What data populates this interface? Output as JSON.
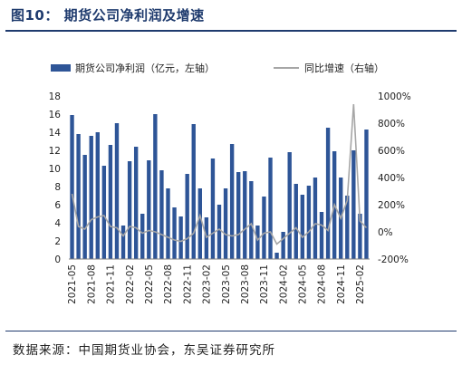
{
  "figure": {
    "title": "图10：  期货公司净利润及增速",
    "source": "数据来源：中国期货业协会，东吴证券研究所"
  },
  "colors": {
    "bar": "#2e5597",
    "line": "#a6a6a6",
    "title": "#1f3b6e"
  },
  "chart_data": {
    "type": "bar",
    "title": "",
    "xlabel": "",
    "ylabel": "",
    "ylim": [
      0,
      18
    ],
    "y2lim": [
      -200,
      1000
    ],
    "yticks": [
      "0",
      "2",
      "4",
      "6",
      "8",
      "10",
      "12",
      "14",
      "16",
      "18"
    ],
    "y2ticks": [
      "-200%",
      "0%",
      "200%",
      "400%",
      "600%",
      "800%",
      "1000%"
    ],
    "x_tick_labels": [
      "2021-05",
      "2021-08",
      "2021-11",
      "2022-02",
      "2022-05",
      "2022-08",
      "2022-11",
      "2023-02",
      "2023-05",
      "2023-08",
      "2023-11",
      "2024-02",
      "2024-05",
      "2024-08",
      "2024-11",
      "2025-02"
    ],
    "categories": [
      "2021-05",
      "2021-06",
      "2021-07",
      "2021-08",
      "2021-09",
      "2021-10",
      "2021-11",
      "2021-12",
      "2022-01",
      "2022-02",
      "2022-03",
      "2022-04",
      "2022-05",
      "2022-06",
      "2022-07",
      "2022-08",
      "2022-09",
      "2022-10",
      "2022-11",
      "2022-12",
      "2023-01",
      "2023-02",
      "2023-03",
      "2023-04",
      "2023-05",
      "2023-06",
      "2023-07",
      "2023-08",
      "2023-09",
      "2023-10",
      "2023-11",
      "2023-12",
      "2024-01",
      "2024-02",
      "2024-03",
      "2024-04",
      "2024-05",
      "2024-06",
      "2024-07",
      "2024-08",
      "2024-09",
      "2024-10",
      "2024-11",
      "2024-12",
      "2025-01",
      "2025-02",
      "2025-03"
    ],
    "grid": false,
    "legend_position": "top",
    "series": [
      {
        "name": "期货公司净利润（亿元，左轴）",
        "type": "bar",
        "axis": "left",
        "values": [
          15.9,
          13.8,
          11.5,
          13.6,
          14.0,
          10.3,
          12.6,
          15.0,
          3.7,
          10.8,
          12.4,
          5.0,
          10.9,
          16.0,
          9.8,
          7.8,
          5.7,
          4.7,
          9.4,
          14.9,
          7.8,
          4.6,
          11.1,
          6.0,
          7.8,
          12.7,
          9.6,
          9.7,
          8.6,
          3.7,
          6.9,
          11.2,
          0.7,
          3.0,
          11.8,
          8.3,
          7.1,
          8.1,
          9.0,
          5.2,
          14.5,
          11.9,
          9.0,
          7.0,
          12.0,
          5.0,
          14.3
        ]
      },
      {
        "name": "同比增速（右轴）",
        "type": "line",
        "axis": "right",
        "values": [
          280,
          40,
          20,
          90,
          110,
          120,
          40,
          30,
          -30,
          40,
          30,
          -10,
          10,
          0,
          -20,
          -40,
          -60,
          -70,
          -50,
          -10,
          120,
          -40,
          -10,
          20,
          -20,
          -30,
          -20,
          20,
          60,
          -60,
          -10,
          0,
          -90,
          -50,
          -10,
          30,
          -40,
          0,
          60,
          50,
          10,
          200,
          100,
          230,
          940,
          80,
          30
        ]
      }
    ]
  }
}
